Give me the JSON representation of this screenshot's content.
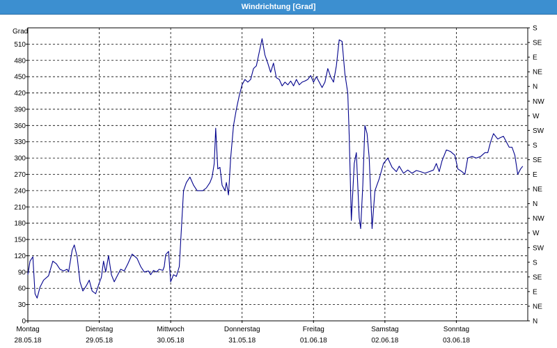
{
  "window": {
    "title": "Windrichtung [Grad]"
  },
  "chart_data": {
    "type": "line",
    "title": "Windrichtung [Grad]",
    "ylabel": "Grad",
    "ylim": [
      0,
      540
    ],
    "grid": true,
    "y_ticks_left": [
      "0",
      "30",
      "60",
      "90",
      "120",
      "150",
      "180",
      "210",
      "240",
      "270",
      "300",
      "330",
      "360",
      "390",
      "420",
      "450",
      "480",
      "510"
    ],
    "y_ticks_right": [
      "N",
      "NE",
      "E",
      "SE",
      "S",
      "SW",
      "W",
      "NW",
      "N",
      "NE",
      "E",
      "SE",
      "S",
      "SW",
      "W",
      "NW",
      "N",
      "NE",
      "E",
      "SE",
      "S"
    ],
    "x_ticks": [
      {
        "day": "Montag",
        "date": "28.05.18"
      },
      {
        "day": "Dienstag",
        "date": "29.05.18"
      },
      {
        "day": "Mittwoch",
        "date": "30.05.18"
      },
      {
        "day": "Donnerstag",
        "date": "31.05.18"
      },
      {
        "day": "Freitag",
        "date": "01.06.18"
      },
      {
        "day": "Samstag",
        "date": "02.06.18"
      },
      {
        "day": "Sonntag",
        "date": "03.06.18"
      }
    ],
    "x_days_span": [
      0,
      7
    ],
    "series": [
      {
        "color": "#00008b",
        "points": [
          [
            0.0,
            85
          ],
          [
            0.03,
            110
          ],
          [
            0.07,
            118
          ],
          [
            0.1,
            50
          ],
          [
            0.13,
            42
          ],
          [
            0.17,
            62
          ],
          [
            0.22,
            75
          ],
          [
            0.29,
            83
          ],
          [
            0.35,
            110
          ],
          [
            0.4,
            105
          ],
          [
            0.45,
            95
          ],
          [
            0.5,
            92
          ],
          [
            0.55,
            95
          ],
          [
            0.57,
            90
          ],
          [
            0.62,
            130
          ],
          [
            0.65,
            140
          ],
          [
            0.69,
            118
          ],
          [
            0.73,
            72
          ],
          [
            0.77,
            55
          ],
          [
            0.82,
            65
          ],
          [
            0.86,
            75
          ],
          [
            0.9,
            55
          ],
          [
            0.95,
            50
          ],
          [
            1.0,
            70
          ],
          [
            1.03,
            80
          ],
          [
            1.06,
            110
          ],
          [
            1.09,
            90
          ],
          [
            1.13,
            120
          ],
          [
            1.17,
            85
          ],
          [
            1.21,
            72
          ],
          [
            1.26,
            85
          ],
          [
            1.3,
            95
          ],
          [
            1.35,
            92
          ],
          [
            1.4,
            105
          ],
          [
            1.46,
            123
          ],
          [
            1.53,
            115
          ],
          [
            1.58,
            100
          ],
          [
            1.63,
            90
          ],
          [
            1.69,
            92
          ],
          [
            1.72,
            85
          ],
          [
            1.76,
            93
          ],
          [
            1.8,
            90
          ],
          [
            1.84,
            95
          ],
          [
            1.89,
            93
          ],
          [
            1.91,
            100
          ],
          [
            1.93,
            122
          ],
          [
            1.97,
            128
          ],
          [
            2.0,
            72
          ],
          [
            2.04,
            85
          ],
          [
            2.08,
            82
          ],
          [
            2.12,
            100
          ],
          [
            2.18,
            240
          ],
          [
            2.22,
            255
          ],
          [
            2.27,
            265
          ],
          [
            2.32,
            250
          ],
          [
            2.37,
            240
          ],
          [
            2.45,
            240
          ],
          [
            2.5,
            245
          ],
          [
            2.55,
            255
          ],
          [
            2.58,
            265
          ],
          [
            2.61,
            290
          ],
          [
            2.63,
            355
          ],
          [
            2.66,
            280
          ],
          [
            2.69,
            283
          ],
          [
            2.72,
            250
          ],
          [
            2.76,
            240
          ],
          [
            2.78,
            255
          ],
          [
            2.81,
            232
          ],
          [
            2.84,
            300
          ],
          [
            2.88,
            360
          ],
          [
            2.92,
            390
          ],
          [
            2.96,
            415
          ],
          [
            3.0,
            435
          ],
          [
            3.04,
            445
          ],
          [
            3.08,
            440
          ],
          [
            3.12,
            445
          ],
          [
            3.16,
            465
          ],
          [
            3.2,
            470
          ],
          [
            3.24,
            495
          ],
          [
            3.28,
            520
          ],
          [
            3.32,
            490
          ],
          [
            3.36,
            475
          ],
          [
            3.4,
            458
          ],
          [
            3.44,
            475
          ],
          [
            3.48,
            448
          ],
          [
            3.52,
            445
          ],
          [
            3.56,
            433
          ],
          [
            3.6,
            440
          ],
          [
            3.64,
            435
          ],
          [
            3.68,
            442
          ],
          [
            3.72,
            433
          ],
          [
            3.76,
            445
          ],
          [
            3.8,
            435
          ],
          [
            3.84,
            440
          ],
          [
            3.88,
            442
          ],
          [
            3.92,
            445
          ],
          [
            3.96,
            452
          ],
          [
            4.0,
            440
          ],
          [
            4.04,
            450
          ],
          [
            4.08,
            440
          ],
          [
            4.12,
            430
          ],
          [
            4.16,
            440
          ],
          [
            4.2,
            465
          ],
          [
            4.24,
            450
          ],
          [
            4.28,
            440
          ],
          [
            4.32,
            470
          ],
          [
            4.36,
            518
          ],
          [
            4.4,
            515
          ],
          [
            4.44,
            455
          ],
          [
            4.48,
            420
          ],
          [
            4.5,
            340
          ],
          [
            4.53,
            185
          ],
          [
            4.57,
            290
          ],
          [
            4.6,
            310
          ],
          [
            4.64,
            190
          ],
          [
            4.66,
            170
          ],
          [
            4.69,
            250
          ],
          [
            4.72,
            360
          ],
          [
            4.75,
            345
          ],
          [
            4.78,
            300
          ],
          [
            4.82,
            170
          ],
          [
            4.86,
            240
          ],
          [
            4.92,
            262
          ],
          [
            4.98,
            290
          ],
          [
            5.04,
            300
          ],
          [
            5.1,
            283
          ],
          [
            5.16,
            275
          ],
          [
            5.2,
            285
          ],
          [
            5.26,
            272
          ],
          [
            5.32,
            278
          ],
          [
            5.38,
            272
          ],
          [
            5.44,
            277
          ],
          [
            5.5,
            275
          ],
          [
            5.56,
            272
          ],
          [
            5.62,
            275
          ],
          [
            5.68,
            278
          ],
          [
            5.72,
            290
          ],
          [
            5.76,
            275
          ],
          [
            5.8,
            295
          ],
          [
            5.86,
            315
          ],
          [
            5.92,
            312
          ],
          [
            5.98,
            305
          ],
          [
            6.02,
            280
          ],
          [
            6.08,
            275
          ],
          [
            6.12,
            270
          ],
          [
            6.16,
            300
          ],
          [
            6.22,
            303
          ],
          [
            6.28,
            300
          ],
          [
            6.34,
            303
          ],
          [
            6.4,
            310
          ],
          [
            6.44,
            310
          ],
          [
            6.48,
            330
          ],
          [
            6.52,
            345
          ],
          [
            6.58,
            335
          ],
          [
            6.62,
            338
          ],
          [
            6.66,
            340
          ],
          [
            6.7,
            330
          ],
          [
            6.74,
            320
          ],
          [
            6.78,
            320
          ],
          [
            6.82,
            305
          ],
          [
            6.86,
            270
          ],
          [
            6.9,
            280
          ],
          [
            6.93,
            285
          ]
        ]
      }
    ]
  }
}
